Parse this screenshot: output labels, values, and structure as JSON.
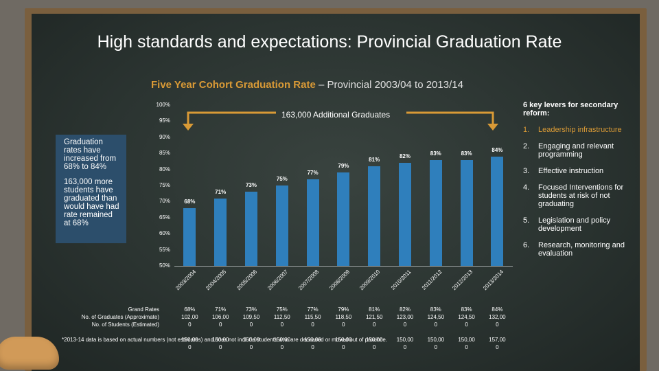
{
  "title": "High standards and expectations: Provincial Graduation Rate",
  "subtitle": {
    "accent": "Five Year Cohort Graduation Rate",
    "rest": " – Provincial 2003/04 to 2013/14"
  },
  "callout": {
    "p1": "Graduation rates have increased from 68% to 84%",
    "p2": "163,000 more students have graduated than would have had rate remained at 68%"
  },
  "bracket_label": "163,000 Additional Graduates",
  "levers": {
    "heading": "6 key levers for secondary reform:",
    "items": [
      {
        "num": "1.",
        "text": "Leadership infrastructure"
      },
      {
        "num": "2.",
        "text": "Engaging and relevant programming"
      },
      {
        "num": "3.",
        "text": "Effective instruction"
      },
      {
        "num": "4.",
        "text": "Focused Interventions for students at risk of not graduating"
      },
      {
        "num": "5.",
        "text": "Legislation and policy development"
      },
      {
        "num": "6.",
        "text": "Research, monitoring and evaluation"
      }
    ]
  },
  "table": {
    "row_labels": [
      "Grand Rates",
      "No. of Graduates (Approximate)",
      "No. of Students (Estimated)"
    ],
    "columns": [
      [
        "68%",
        "102,00",
        "0",
        "",
        "150,00",
        "0"
      ],
      [
        "71%",
        "106,00",
        "0",
        "",
        "150,00",
        "0"
      ],
      [
        "73%",
        "109,50",
        "0",
        "",
        "150,00",
        "0"
      ],
      [
        "75%",
        "112,50",
        "0",
        "",
        "150,00",
        "0"
      ],
      [
        "77%",
        "115,50",
        "0",
        "",
        "150,00",
        "0"
      ],
      [
        "79%",
        "118,50",
        "0",
        "",
        "150,00",
        "0"
      ],
      [
        "81%",
        "121,50",
        "0",
        "",
        "150,00",
        "0"
      ],
      [
        "82%",
        "123,00",
        "0",
        "",
        "150,00",
        "0"
      ],
      [
        "83%",
        "124,50",
        "0",
        "",
        "150,00",
        "0"
      ],
      [
        "83%",
        "124,50",
        "0",
        "",
        "150,00",
        "0"
      ],
      [
        "84%",
        "132,00",
        "0",
        "",
        "157,00",
        "0"
      ]
    ]
  },
  "footnote": "*2013-14 data is based on actual numbers (not estimates) and does not include students who are deceased or moved out of province.",
  "chart_data": {
    "type": "bar",
    "categories": [
      "2003/2004",
      "2004/2005",
      "2005/2006",
      "2006/2007",
      "2007/2008",
      "2008/2009",
      "2009/2010",
      "2010/2011",
      "2011/2012",
      "2012/2013",
      "2013/2014"
    ],
    "values": [
      68,
      71,
      73,
      75,
      77,
      79,
      81,
      82,
      83,
      83,
      84
    ],
    "data_labels": [
      "68%",
      "71%",
      "73%",
      "75%",
      "77%",
      "79%",
      "81%",
      "82%",
      "83%",
      "83%",
      "84%"
    ],
    "ylim": [
      50,
      100
    ],
    "yticks": [
      "50%",
      "55%",
      "60%",
      "65%",
      "70%",
      "75%",
      "80%",
      "85%",
      "90%",
      "95%",
      "100%"
    ],
    "color": "#2f7fbc",
    "grid": false
  }
}
